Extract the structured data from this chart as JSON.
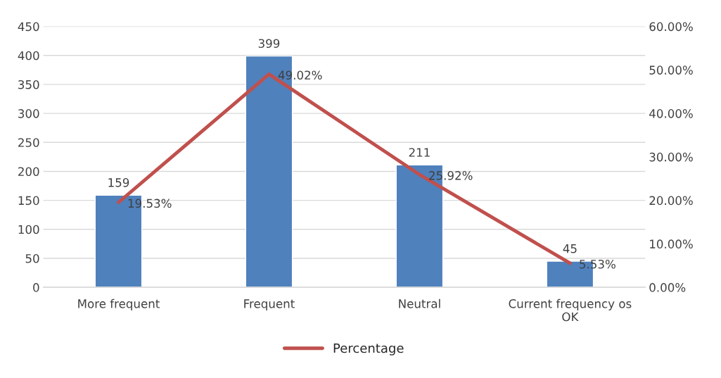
{
  "chart_data": {
    "type": "bar",
    "categories": [
      "More frequent",
      "Frequent",
      "Neutral",
      "Current frequency os OK"
    ],
    "series": [
      {
        "color": "#4f81bd",
        "values": [
          159,
          399,
          211,
          45
        ]
      },
      {
        "type": "line",
        "name": "Percentage",
        "axis": "y2",
        "color": "#c0504d",
        "values": [
          19.53,
          49.02,
          25.92,
          5.53
        ],
        "value_labels": [
          "19.53%",
          "49.02%",
          "25.92%",
          "5.53%"
        ],
        "marker": "none"
      }
    ],
    "data_labels": true,
    "ylim": [
      0,
      450
    ],
    "yticks": [
      0,
      50,
      100,
      150,
      200,
      250,
      300,
      350,
      400,
      450
    ],
    "y2lim": [
      0,
      60
    ],
    "y2ticks": [
      {
        "value": 0,
        "label": "0.00%"
      },
      {
        "value": 10,
        "label": "10.00%"
      },
      {
        "value": 20,
        "label": "20.00%"
      },
      {
        "value": 30,
        "label": "30.00%"
      },
      {
        "value": 40,
        "label": "40.00%"
      },
      {
        "value": 50,
        "label": "50.00%"
      },
      {
        "value": 60,
        "label": "60.00%"
      }
    ],
    "grid": "y",
    "legend": "bottom"
  }
}
